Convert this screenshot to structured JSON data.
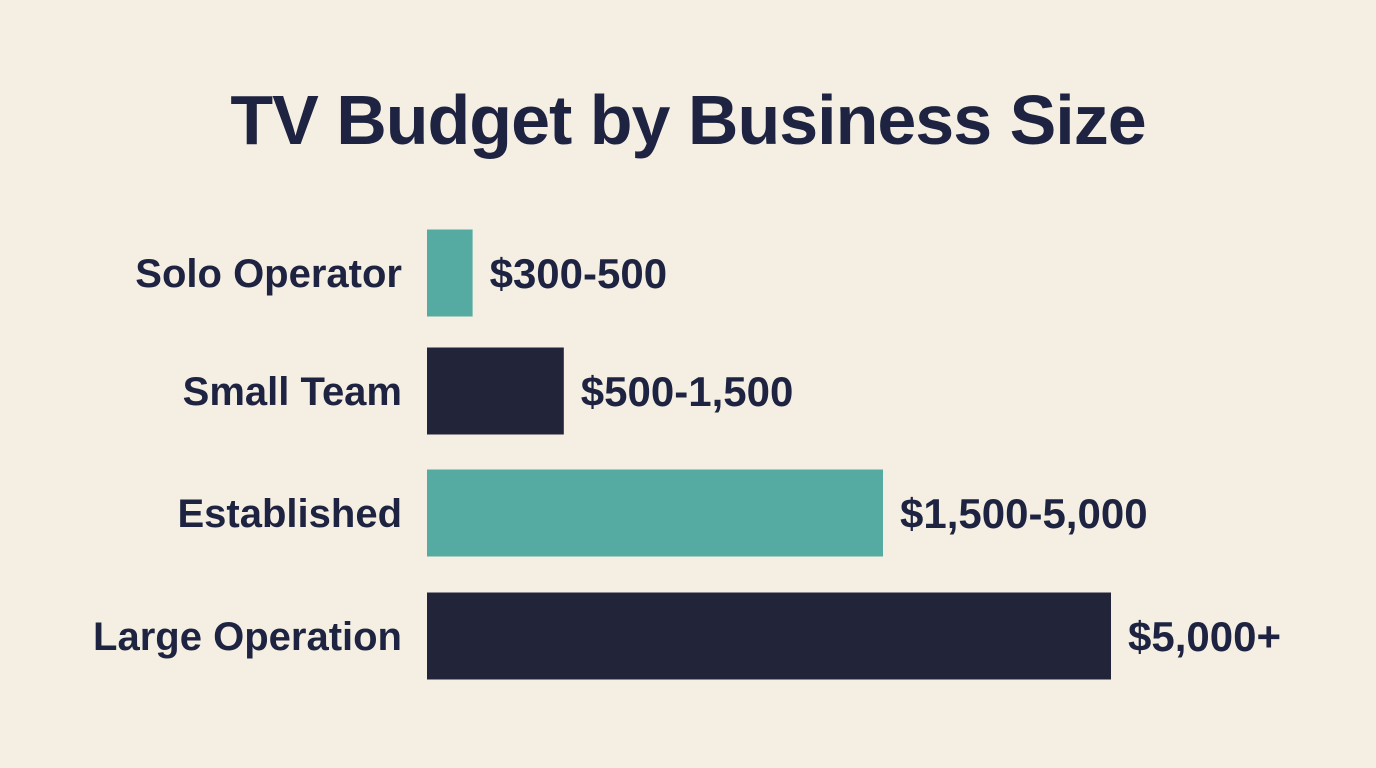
{
  "chart_data": {
    "type": "bar",
    "orientation": "horizontal",
    "title": "TV Budget by Business Size",
    "categories": [
      "Solo Operator",
      "Small Team",
      "Established",
      "Large Operation"
    ],
    "values": [
      500,
      1500,
      5000,
      7500
    ],
    "value_labels": [
      "$300-500",
      "$500-1,500",
      "$1,500-5,000",
      "$5,000+"
    ],
    "bar_colors": [
      "#55aba1",
      "#22243a",
      "#55aba1",
      "#22243a"
    ],
    "xlabel": "",
    "ylabel": "",
    "grid": false,
    "legend": "none"
  },
  "colors": {
    "background": "#f5efe3",
    "text": "#1d2340",
    "teal": "#55aba1",
    "navy": "#22243a"
  }
}
